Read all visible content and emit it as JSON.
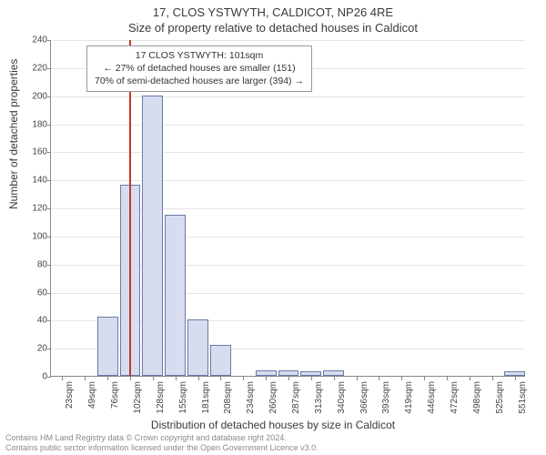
{
  "title_line1": "17, CLOS YSTWYTH, CALDICOT, NP26 4RE",
  "title_line2": "Size of property relative to detached houses in Caldicot",
  "ylabel": "Number of detached properties",
  "xlabel": "Distribution of detached houses by size in Caldicot",
  "chart": {
    "type": "histogram",
    "ylim": [
      0,
      240
    ],
    "ytick_step": 20,
    "background_color": "#ffffff",
    "grid_color": "#e5e5e5",
    "axis_color": "#888888",
    "bar_fill": "#d7ddef",
    "bar_border": "#6a7aa8",
    "marker_color": "#c0392b",
    "marker_position_sqm": 101,
    "label_fontsize": 12,
    "tick_fontsize": 10,
    "categories": [
      "23sqm",
      "49sqm",
      "76sqm",
      "102sqm",
      "128sqm",
      "155sqm",
      "181sqm",
      "208sqm",
      "234sqm",
      "260sqm",
      "287sqm",
      "313sqm",
      "340sqm",
      "366sqm",
      "393sqm",
      "419sqm",
      "446sqm",
      "472sqm",
      "498sqm",
      "525sqm",
      "551sqm"
    ],
    "values": [
      0,
      0,
      42,
      136,
      200,
      115,
      40,
      22,
      0,
      4,
      4,
      3,
      4,
      0,
      0,
      0,
      0,
      0,
      0,
      0,
      3,
      0
    ]
  },
  "annotation": {
    "line1": "17 CLOS YSTWYTH: 101sqm",
    "line2": "← 27% of detached houses are smaller (151)",
    "line3": "70% of semi-detached houses are larger (394) →"
  },
  "footer": {
    "line1": "Contains HM Land Registry data © Crown copyright and database right 2024.",
    "line2": "Contains public sector information licensed under the Open Government Licence v3.0."
  }
}
